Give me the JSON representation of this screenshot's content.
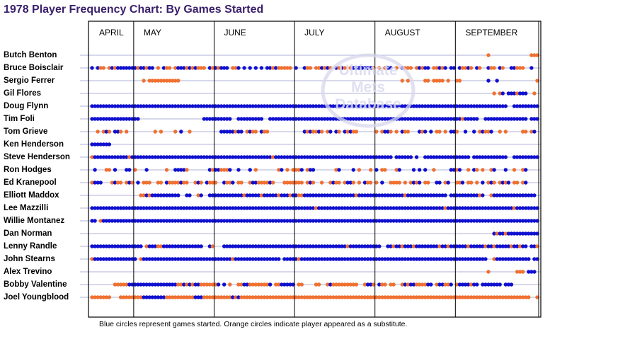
{
  "title": "1978 Player Frequency Chart: By Games Started",
  "note": "Blue circles represent games started. Orange circles indicate player appeared as a substitute.",
  "watermark": {
    "line1": "Ultimate",
    "line2": "Mets",
    "line3": "Database"
  },
  "colors": {
    "started": "#1010d0",
    "substitute": "#f07030",
    "title": "#3a1f6b",
    "grid": "#9999cc"
  },
  "chart_data": {
    "type": "table",
    "months": [
      "APRIL",
      "MAY",
      "JUNE",
      "JULY",
      "AUGUST",
      "SEPTEMBER"
    ],
    "months_game_counts": [
      15,
      28,
      28,
      28,
      28,
      29
    ],
    "total_games": 156,
    "legend": {
      "B": "started",
      "O": "substitute",
      ".": "no appearance"
    },
    "players": [
      {
        "name": "Butch Benton",
        "games": "..........................................................................................................................................O..............OOO"
      },
      {
        "name": "Bruce Boisclair",
        "games": "B.BOO.OBOBBBBBBBOBBOBB.O.BOO.OBBBOBOBOOO.BOBOBBB.OOB.B.B.B.B.BBOBOOOOO.B..BOO.OOBOBO.BOBO.OBBBBBBBO.O.OBB.O.BOOO.OBOBB.OOBOB.BB.BOOBO.BO..BOO.BO..BBOOO..B"
      },
      {
        "name": "Sergio Ferrer",
        "games": "..................O.OOOOOOOOOOO.............................................................................O.O.....OO.OOOO.O..OO.........B..B.............OB"
      },
      {
        "name": "Gil Flores",
        "games": "............................................................................................................................................O.OB.BBBOBBB..O..........BBB"
      },
      {
        "name": "Doug Flynn",
        "games": "BBBBBBBBBBBBBBBBBBBBBBBBBBBBBBBBBBBBBBBBBBBBBBBBBBBBBBBBBBBBBBBBBBBBBBBBBBBBBBBBBBBBBBBBBBBBBBBBBBBBBBBBBBBBBBBBBBBBBBBBBBBBBBBBBBBBBBBBBBBBBBBBB..BBBBBBBBBOBB"
      },
      {
        "name": "Tim Foli",
        "games": "BBBBBBBBBBBBBBBBB......................BBBBBBBBBB..BBBBBBBBB..BBBBBBBBBBBBBBBBBBBBBBBBBBBBBBBBBBBBBBBBBBBBBBBBBBBBBBBBBBBBBBBBBBBOBBBBB..BBBBBBBBBBBBBBB.BBBBBBB..BOBBBBB"
      },
      {
        "name": "Tom Grieve",
        "games": "..O.OBO.BBO.O.........O.O....O.B..O..........BBBBBOBB.OBOO.BOO............BOBOOBO.OB.BO.BOBOO......O.OBBO.O.BOO...BOB.B.OO.O.BBO..B..B.OBOOB..O.O.....OO.OB.."
      },
      {
        "name": "Ken Henderson",
        "games": "BBBBBBB..........................................................................................................................................................."
      },
      {
        "name": "Steve Henderson",
        "games": "OBBBBBBBBBBBBOBBBBBBBBBBBBBBBBBBBBBBBBBBBBBBBBBBBBBBBBBBBBBBBBBOBBBBBBBBBBBBBBBBBBBBBBBBBBBBBBBBBBBBBBBBB.BBBBBB.B..BBBBBBBBBBBBBBBB.BBBBBBBBBBBB..BBBBBBBBBBBBBBBB"
      },
      {
        "name": "Ron Hodges",
        "games": ".B...OO.B...BB.O...B......O..BBBBO.......BOBBOOOB..B...B.O.......OB.O.OOOB.OBB.......OB....B.O...O.B.OO...OB....B.B.B..O.....BBOB..O.BO.O..OB...B..O..OB"
      },
      {
        "name": "Ed Kranepool",
        "games": "OBBB...OBOO.OBO.B.OOO..OO.BOOOOBOO..OBO.BOOO..BOOB.OO..OBBOOOOBO...OOOOOOO.OBO..O..OBOO.OBBO.O.BOO.O.B..OOOO.O.OBOB.OO..BB.OB..OOB.OO.O.B.OBO.OBOB.OO.OB"
      },
      {
        "name": "Elliott Maddox",
        "games": ".................OOBOBBBBBBBBBB..BB..OB..BBBBBBBBBBBBOBBBBBOBBBBBOBBBOBBOOBBBBBBBBBBBBBBBBBBOBBBBBBBBBBBBBBBBOBBBBBBBBBBBBBB.BBBBBBBBBBOB..OBBBBBBBBBBBBBBB.BBBBB"
      },
      {
        "name": "Lee Mazzilli",
        "games": "BBBBBBBBBBBBBBBBBBBBBBBBBBBBBBBBBBBBBBBBBBBBBBBBBBBBBBBBBBBBBBBBBBBBBBBBBBBBBBOBBBBBBBBBBBBBBBBBBBBBBBBBBBBBBBBBBBBBBBBBBBBOBBBBBBBBBBBBBBBBBBBBBBBOBBBBBBBBBBBOB"
      },
      {
        "name": "Willie Montanez",
        "games": "BB.OBBBBBBBBBBBBBBBBBBBBBBBBBBBBBBBBBBBBBBBBBBBBBBBBBBBBBBBBBBBBBBBBBBBBBBBBBBBBBBBBBBBBBBBBBBBBBBBBBBBBBBBBBBBBBBBBBBBBBBBBBBBBBBBBBBBBBBBBBBBBBBBBBBBBBBBBBB"
      },
      {
        "name": "Dan Norman",
        "games": "............................................................................................................................................BOBBOBBBBBBBBBBBBBBBB"
      },
      {
        "name": "Lenny Randle",
        "games": "BBBBBBBBBBBBBBBBBB.OBBBOOBBBBBBBBBBBBBB..BO...BBBBBBBBBBBBBBBBBBBBBBBBBBBBBBBBBBBBBBBBBBBOBBBBBBBBBBB..BBOBBOBBBOBBBBBBBBOBBOBBBBBBOBBBBBOBBOBBBBBOBBOBB.BBO.BBBOBBBB"
      },
      {
        "name": "John Stearns",
        "games": "OBBBBBBBBBBBBBBB.OBBBBBBBBBBBBBBBBBBBBBBBBBBBBBBBOBBBBBBBBBBBBBBBB.BBBBBOBBBBBBBBBBBBBBBBBBBBBBBBBBBBBBBBBBBBBBBBBBBBBBBBBBBBBBBBBBBBBBBBB..OBBBBBBBBBBBB.BBBBBBBBBB"
      },
      {
        "name": "Alex Trevino",
        "games": "..........................................................................................................................................O.........OOO.BBB"
      },
      {
        "name": "Bobby Valentine",
        "games": "........OOOOOBBBBBBBBBBBBBBBBBOOBOBOBBOOOOOOB.B.O..OOBBOOOOOOOB.OOBBBBB.OO....OO..OBOOOOOOOOO..OBBO.BOO.OO..OBOBBOOOOBB.OBBOOB.OBBBBOBB.BBBBBBB.BBB..........O...B"
      },
      {
        "name": "Joel Youngblood",
        "games": "OOOOOOO...OOOOOOOOBBBBBBBBOOOOOOOOOOBBBOOOOOOOOOOBOBOOOOOOOOOOOOOOOOOOOOOOOOOOOOOOOOOOOOOOOOOOOOOOOOOOOOOOOOOOOOOOOOOOOOOOOOOOOOOOOOOOOOOOOOOOOOOOOOOOOOO..OOOOB"
      }
    ]
  }
}
